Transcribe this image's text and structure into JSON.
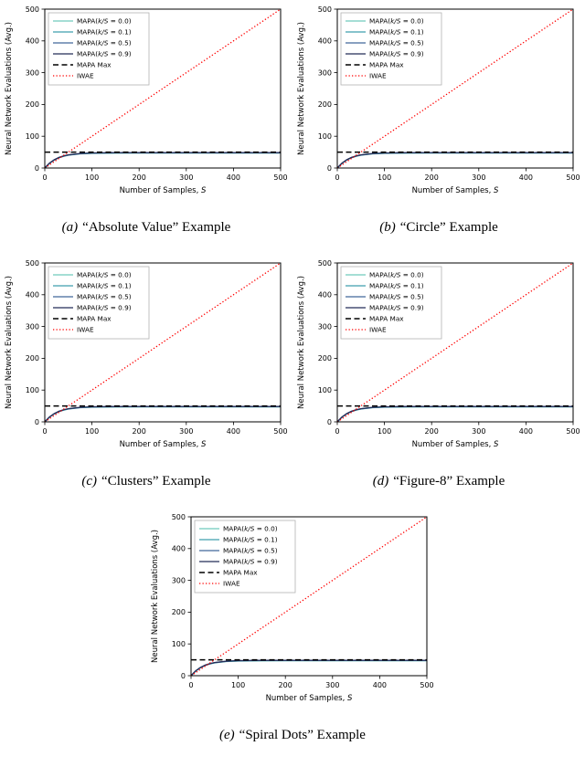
{
  "panels": [
    {
      "label": "(a)",
      "caption": "“Absolute Value” Example"
    },
    {
      "label": "(b)",
      "caption": "“Circle” Example"
    },
    {
      "label": "(c)",
      "caption": "“Clusters” Example"
    },
    {
      "label": "(d)",
      "caption": "“Figure-8” Example"
    },
    {
      "label": "(e)",
      "caption": "“Spiral Dots” Example"
    }
  ],
  "chart_data": {
    "type": "line",
    "note": "Five panels share identical axes, legend and series values",
    "xlabel": "Number of Samples, S",
    "ylabel": "Neural Network Evaluations (Avg.)",
    "xlim": [
      0,
      500
    ],
    "ylim": [
      0,
      500
    ],
    "xticks": [
      0,
      100,
      200,
      300,
      400,
      500
    ],
    "yticks": [
      0,
      100,
      200,
      300,
      400,
      500
    ],
    "legend_position": "upper left",
    "grid": false,
    "x": [
      0,
      10,
      20,
      30,
      40,
      50,
      75,
      100,
      150,
      200,
      250,
      300,
      350,
      400,
      450,
      500
    ],
    "series": [
      {
        "name": "MAPA(k/S = 0.0)",
        "color": "#6fc9bc",
        "dash": "solid",
        "y": [
          0,
          15.0,
          25.2,
          32.2,
          36.9,
          40.1,
          44.4,
          46.0,
          46.9,
          47.0,
          47.0,
          47.0,
          47.0,
          47.0,
          47.0,
          47.0
        ]
      },
      {
        "name": "MAPA(k/S = 0.1)",
        "color": "#3d9fae",
        "dash": "solid",
        "y": [
          0,
          15.2,
          25.5,
          32.5,
          37.3,
          40.6,
          44.8,
          46.5,
          47.4,
          47.5,
          47.5,
          47.5,
          47.5,
          47.5,
          47.5,
          47.5
        ]
      },
      {
        "name": "MAPA(k/S = 0.5)",
        "color": "#41679b",
        "dash": "solid",
        "y": [
          0,
          15.3,
          25.8,
          32.9,
          37.7,
          41.0,
          45.3,
          47.0,
          47.9,
          48.0,
          48.0,
          48.0,
          48.0,
          48.0,
          48.0,
          48.0
        ]
      },
      {
        "name": "MAPA(k/S = 0.9)",
        "color": "#232c57",
        "dash": "solid",
        "y": [
          0,
          15.5,
          26.0,
          33.2,
          38.1,
          41.4,
          45.8,
          47.5,
          48.4,
          48.5,
          48.5,
          48.5,
          48.5,
          48.5,
          48.5,
          48.5
        ]
      },
      {
        "name": "MAPA Max",
        "color": "#000000",
        "dash": "dashed",
        "y": [
          50,
          50,
          50,
          50,
          50,
          50,
          50,
          50,
          50,
          50,
          50,
          50,
          50,
          50,
          50,
          50
        ]
      },
      {
        "name": "IWAE",
        "color": "#ff0000",
        "dash": "dotted",
        "y": [
          0,
          10,
          20,
          30,
          40,
          50,
          75,
          100,
          150,
          200,
          250,
          300,
          350,
          400,
          450,
          500
        ]
      }
    ]
  }
}
